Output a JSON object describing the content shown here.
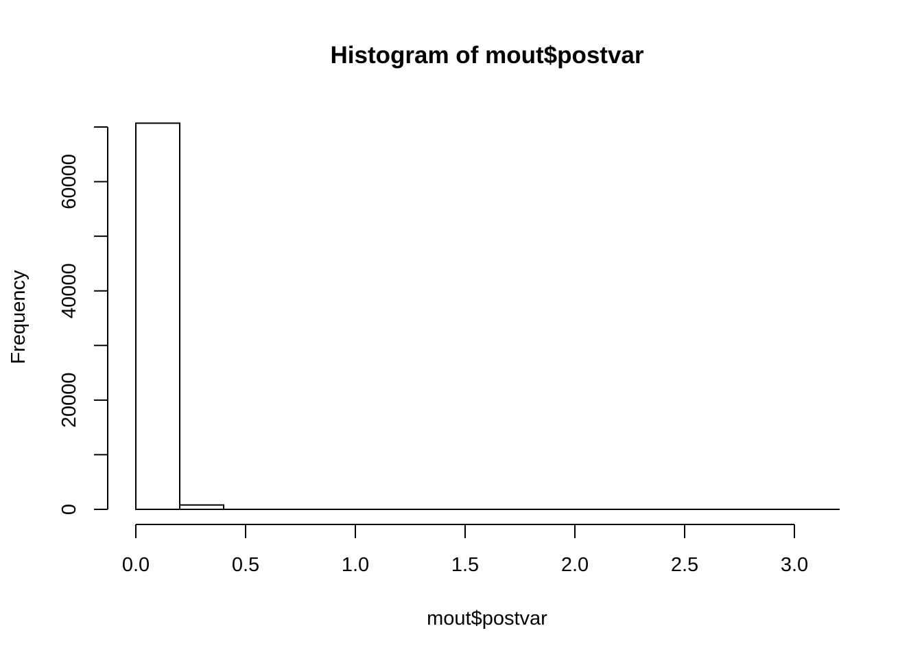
{
  "chart_data": {
    "type": "bar",
    "title": "Histogram of mout$postvar",
    "xlabel": "mout$postvar",
    "ylabel": "Frequency",
    "bin_edges": [
      0.0,
      0.2,
      0.4,
      0.6,
      0.8,
      1.0,
      1.2,
      1.4,
      1.6,
      1.8,
      2.0,
      2.2,
      2.4,
      2.6,
      2.8,
      3.0,
      3.2
    ],
    "values": [
      70700,
      800,
      0,
      0,
      0,
      0,
      0,
      0,
      0,
      0,
      0,
      0,
      0,
      0,
      0,
      0
    ],
    "xlim": [
      0.0,
      3.2
    ],
    "ylim": [
      0,
      70000
    ],
    "xticks": [
      0.0,
      0.5,
      1.0,
      1.5,
      2.0,
      2.5,
      3.0
    ],
    "xtick_labels": [
      "0.0",
      "0.5",
      "1.0",
      "1.5",
      "2.0",
      "2.5",
      "3.0"
    ],
    "yticks": [
      0,
      10000,
      20000,
      30000,
      40000,
      50000,
      60000,
      70000
    ],
    "ytick_labels": [
      "0",
      "20000",
      "40000",
      "60000"
    ],
    "ytick_label_values": [
      0,
      20000,
      40000,
      60000
    ],
    "grid": false
  }
}
